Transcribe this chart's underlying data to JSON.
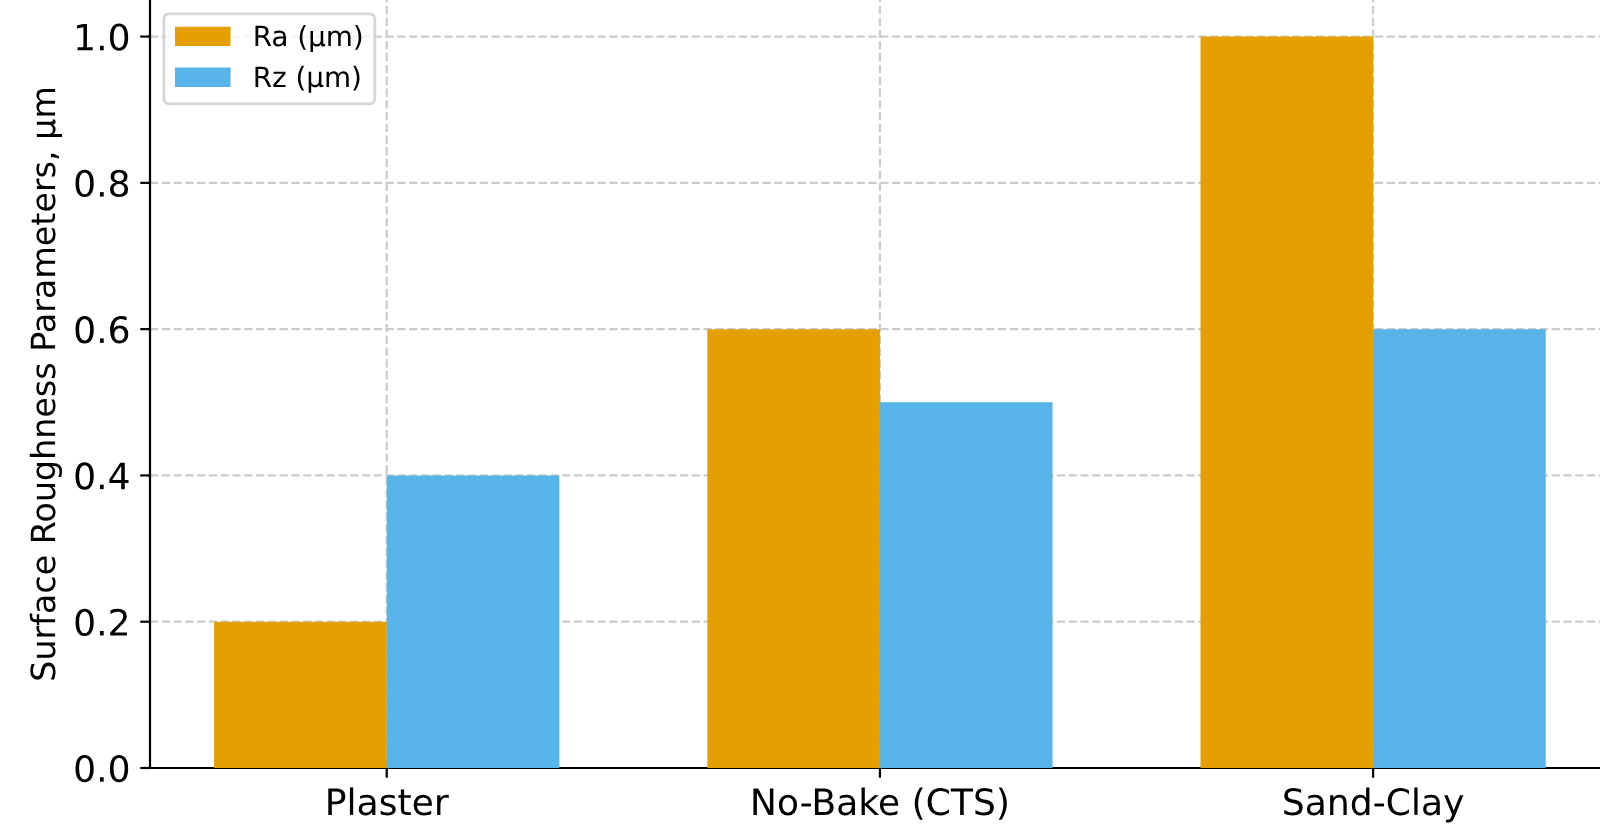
{
  "chart_data": {
    "type": "bar",
    "ylabel": "Surface Roughness Parameters, µm",
    "categories": [
      "Plaster",
      "No-Bake (CTS)",
      "Sand-Clay"
    ],
    "series": [
      {
        "name": "Ra (µm)",
        "color": "#e69f00",
        "values": [
          0.2,
          0.6,
          1.0
        ]
      },
      {
        "name": "Rz (µm)",
        "color": "#56b4e9",
        "values": [
          0.4,
          0.5,
          0.6
        ]
      }
    ],
    "ylim": [
      0,
      1.05
    ],
    "yticks": [
      {
        "value": 0,
        "label": "0.0"
      },
      0.2,
      0.4,
      0.6,
      0.8,
      {
        "value": 1,
        "label": "1.0"
      }
    ],
    "grid": true,
    "legend": "top left"
  }
}
